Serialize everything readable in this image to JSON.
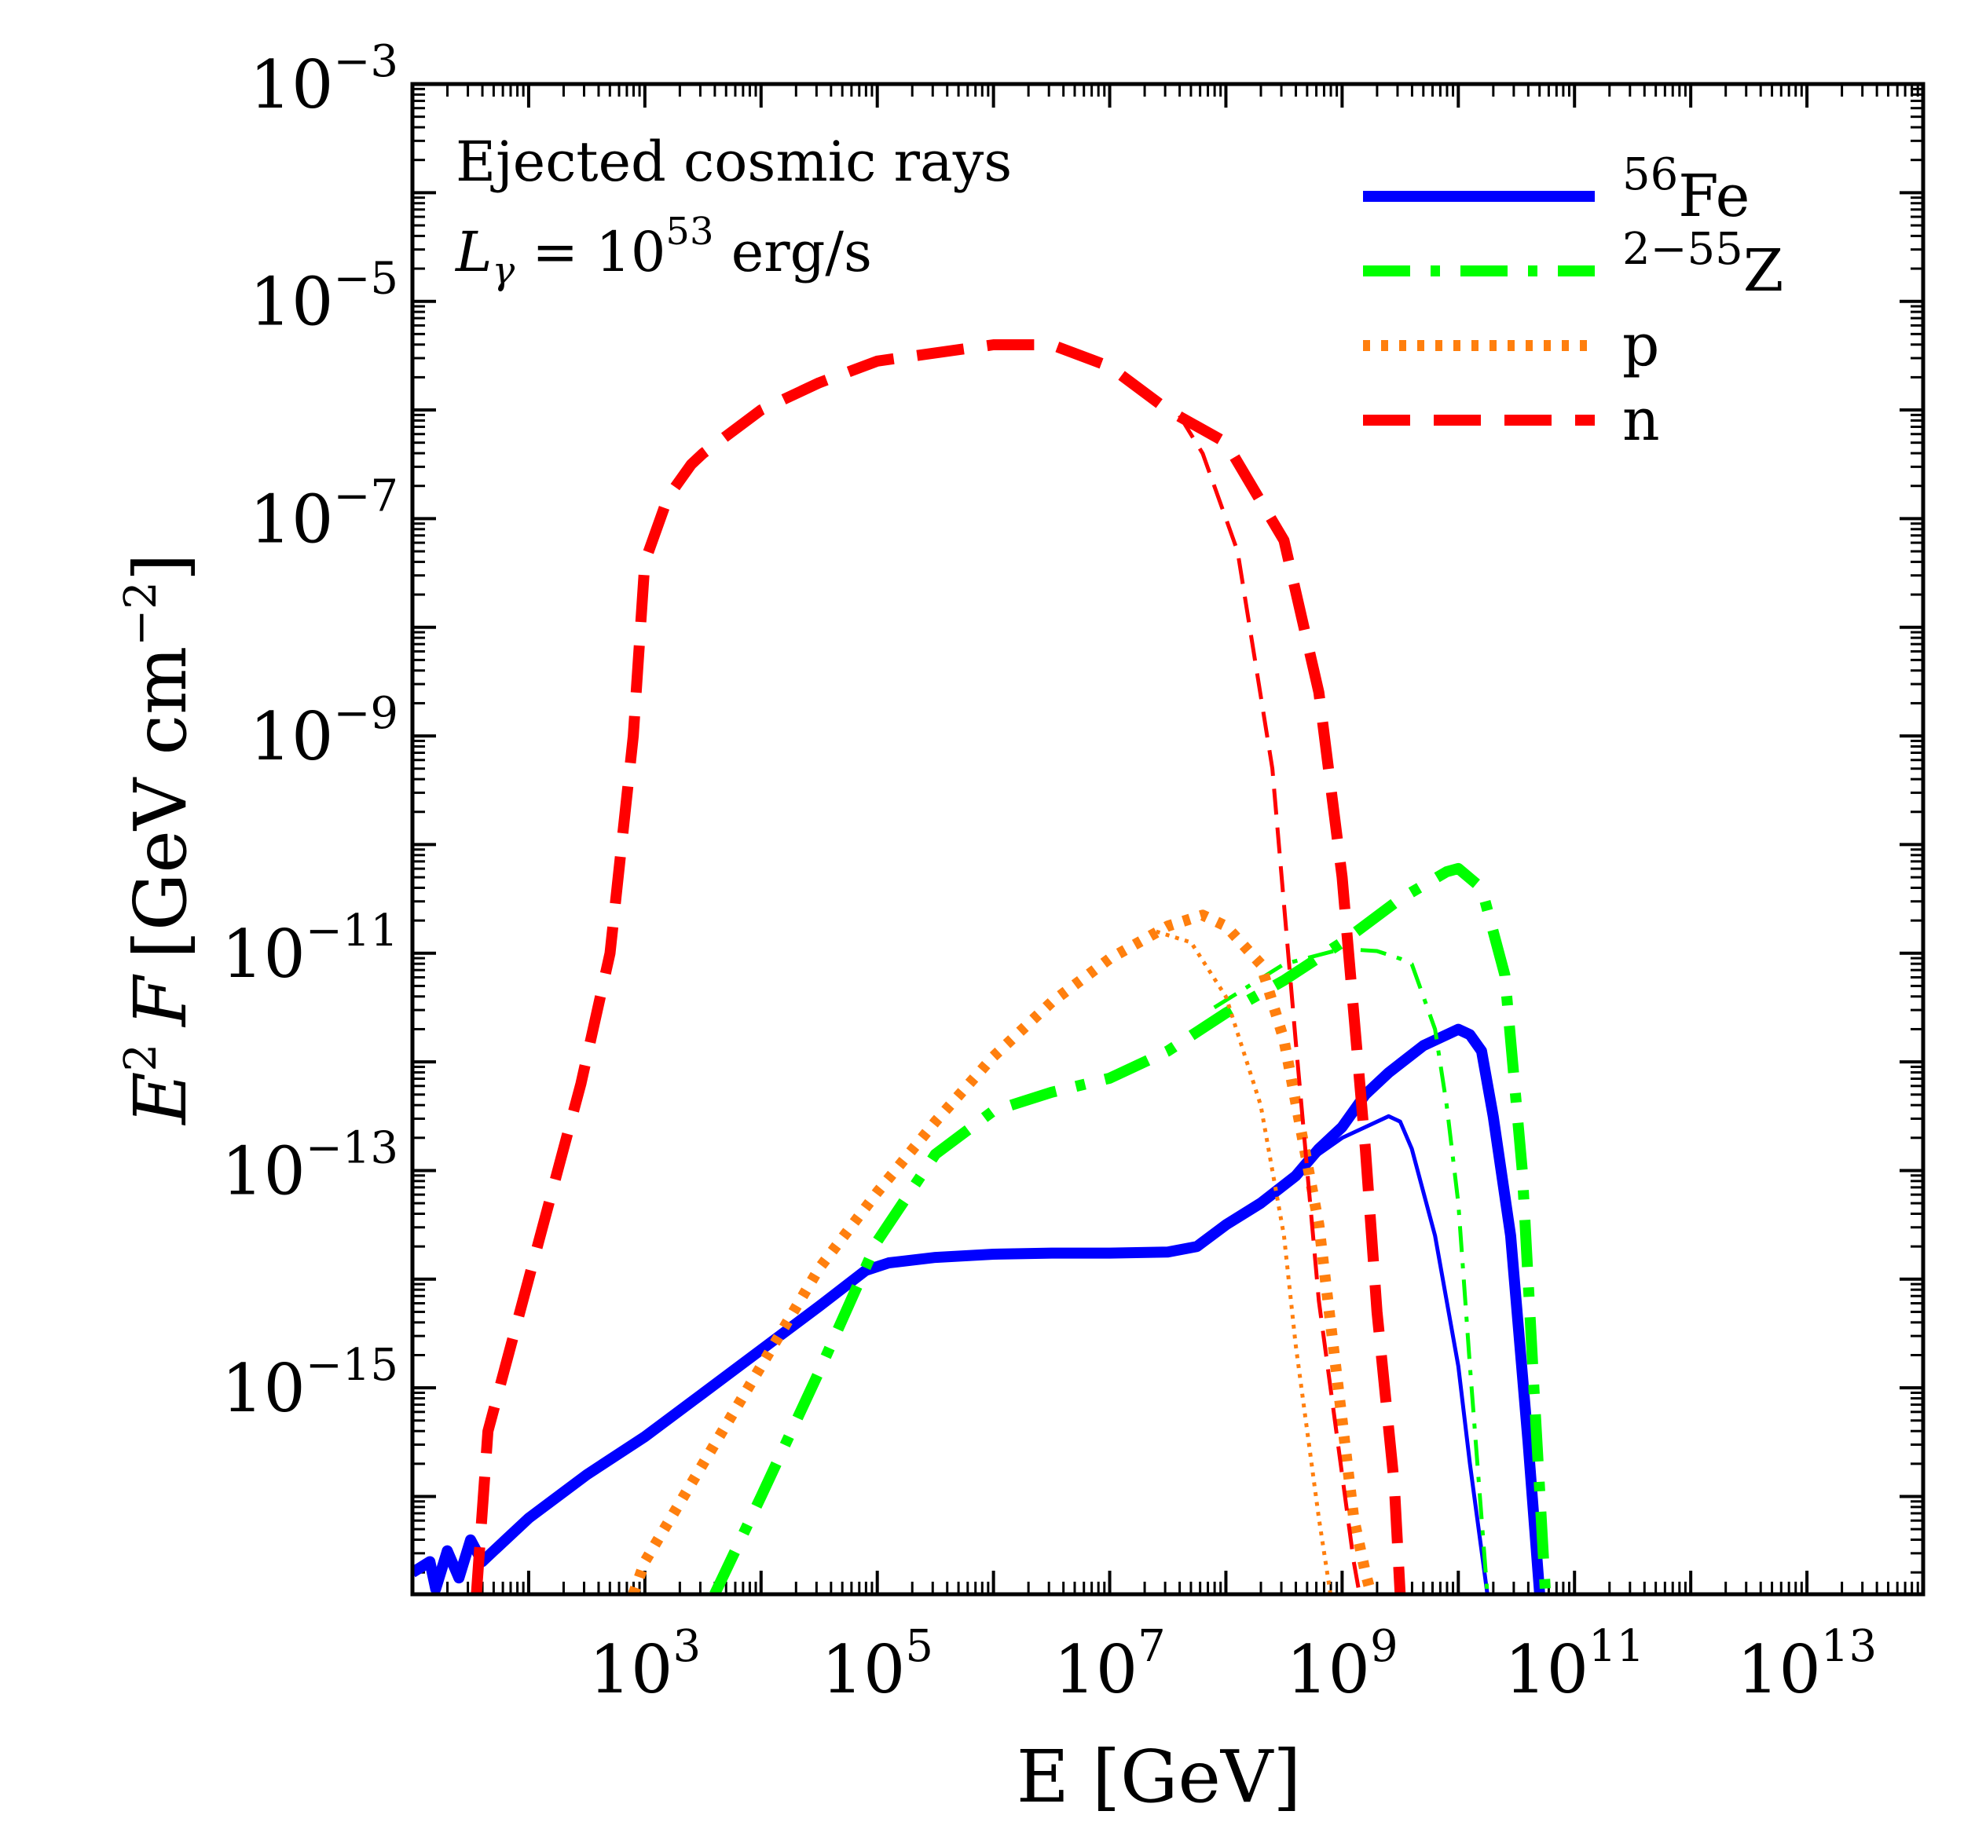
{
  "chart_data": {
    "type": "line",
    "title": "",
    "xlabel": "E [GeV]",
    "ylabel": {
      "prefix": "E",
      "prefix_sup": "2",
      "var": "F",
      "units": "[GeV cm",
      "units_sup": "−2",
      "units_close": "]"
    },
    "x_scale": "log",
    "y_scale": "log",
    "xlim_log10": [
      1.0,
      14.0
    ],
    "ylim_log10": [
      -16.9,
      -3.0
    ],
    "x_ticks": [
      {
        "base": "10",
        "exp": "3",
        "log": 3
      },
      {
        "base": "10",
        "exp": "5",
        "log": 5
      },
      {
        "base": "10",
        "exp": "7",
        "log": 7
      },
      {
        "base": "10",
        "exp": "9",
        "log": 9
      },
      {
        "base": "10",
        "exp": "11",
        "log": 11
      },
      {
        "base": "10",
        "exp": "13",
        "log": 13
      }
    ],
    "y_ticks": [
      {
        "base": "10",
        "exp": "−3",
        "log": -3
      },
      {
        "base": "10",
        "exp": "−5",
        "log": -5
      },
      {
        "base": "10",
        "exp": "−7",
        "log": -7
      },
      {
        "base": "10",
        "exp": "−9",
        "log": -9
      },
      {
        "base": "10",
        "exp": "−11",
        "log": -11
      },
      {
        "base": "10",
        "exp": "−13",
        "log": -13
      },
      {
        "base": "10",
        "exp": "−15",
        "log": -15
      }
    ],
    "annotations": {
      "line1": "Ejected cosmic rays",
      "line2_var": "L",
      "line2_sub": "γ",
      "line2_eq": " = 10",
      "line2_sup": "53",
      "line2_unit": " erg/s"
    },
    "legend": [
      {
        "sup": "56",
        "label": "Fe",
        "color": "#0000ff",
        "dash": "solid"
      },
      {
        "sup": "2−55",
        "label": "Z",
        "color": "#00ff00",
        "dash": "dashdot"
      },
      {
        "sup": "",
        "label": "p",
        "color": "#ff7f0e",
        "dash": "dotted"
      },
      {
        "sup": "",
        "label": "n",
        "color": "#ff0000",
        "dash": "dashed"
      }
    ],
    "series": [
      {
        "name": "Fe (total)",
        "color": "#0000ff",
        "dash": "solid",
        "weight": "thick",
        "x": [
          1.0,
          1.15,
          1.2,
          1.3,
          1.4,
          1.5,
          1.6,
          1.7,
          2.0,
          2.5,
          3.0,
          3.5,
          4.0,
          4.5,
          4.9,
          5.1,
          5.5,
          6.0,
          6.5,
          7.0,
          7.5,
          7.75,
          8.0,
          8.3,
          8.6,
          8.8,
          9.0,
          9.2,
          9.4,
          9.7,
          10.0,
          10.1,
          10.2,
          10.3,
          10.45,
          10.6,
          10.7
        ],
        "y": [
          -16.7,
          -16.6,
          -16.85,
          -16.5,
          -16.75,
          -16.4,
          -16.6,
          -16.5,
          -16.2,
          -15.8,
          -15.45,
          -15.05,
          -14.65,
          -14.25,
          -13.92,
          -13.85,
          -13.8,
          -13.77,
          -13.76,
          -13.76,
          -13.75,
          -13.7,
          -13.5,
          -13.3,
          -13.05,
          -12.8,
          -12.6,
          -12.3,
          -12.1,
          -11.85,
          -11.7,
          -11.75,
          -11.9,
          -12.5,
          -13.6,
          -15.5,
          -16.9
        ]
      },
      {
        "name": "Fe (thin)",
        "color": "#0000ff",
        "dash": "solid",
        "weight": "thin",
        "x": [
          8.6,
          8.8,
          9.0,
          9.2,
          9.4,
          9.5,
          9.6,
          9.8,
          10.0,
          10.1,
          10.25
        ],
        "y": [
          -13.05,
          -12.85,
          -12.7,
          -12.6,
          -12.5,
          -12.55,
          -12.8,
          -13.6,
          -14.8,
          -15.7,
          -16.9
        ]
      },
      {
        "name": "2-55 Z (total)",
        "color": "#00ff00",
        "dash": "dashdot",
        "weight": "thick",
        "x": [
          3.6,
          4.0,
          4.5,
          5.0,
          5.5,
          6.0,
          6.5,
          7.0,
          7.5,
          8.0,
          8.5,
          9.0,
          9.5,
          9.9,
          10.0,
          10.2,
          10.4,
          10.55,
          10.65,
          10.75
        ],
        "y": [
          -16.9,
          -16.0,
          -14.85,
          -13.65,
          -12.85,
          -12.45,
          -12.28,
          -12.15,
          -11.9,
          -11.55,
          -11.25,
          -10.9,
          -10.5,
          -10.25,
          -10.22,
          -10.4,
          -11.2,
          -13.0,
          -15.0,
          -16.9
        ]
      },
      {
        "name": "2-55 Z (thin)",
        "color": "#00ff00",
        "dash": "dashdot",
        "weight": "thin",
        "x": [
          7.9,
          8.5,
          9.0,
          9.3,
          9.5,
          9.6,
          9.8,
          9.9,
          10.0,
          10.1,
          10.25
        ],
        "y": [
          -11.5,
          -11.1,
          -10.96,
          -10.98,
          -11.05,
          -11.1,
          -11.7,
          -12.4,
          -13.3,
          -14.8,
          -16.9
        ]
      },
      {
        "name": "p (total)",
        "color": "#ff7f0e",
        "dash": "dotted",
        "weight": "thick",
        "x": [
          2.9,
          3.0,
          3.5,
          4.0,
          4.5,
          5.0,
          5.5,
          6.0,
          6.5,
          7.0,
          7.5,
          7.8,
          8.0,
          8.3,
          8.5,
          8.8,
          9.0,
          9.1,
          9.2,
          9.25
        ],
        "y": [
          -16.9,
          -16.6,
          -15.7,
          -14.8,
          -13.9,
          -13.2,
          -12.55,
          -11.95,
          -11.45,
          -11.05,
          -10.75,
          -10.65,
          -10.75,
          -11.1,
          -11.8,
          -13.5,
          -15.3,
          -16.2,
          -16.7,
          -16.9
        ]
      },
      {
        "name": "p (thin)",
        "color": "#ff7f0e",
        "dash": "dotted",
        "weight": "thin",
        "x": [
          7.4,
          7.7,
          8.0,
          8.3,
          8.5,
          8.6,
          8.7,
          8.8,
          8.9
        ],
        "y": [
          -10.8,
          -10.9,
          -11.4,
          -12.4,
          -13.6,
          -14.6,
          -15.4,
          -16.2,
          -16.9
        ]
      },
      {
        "name": "n (total)",
        "color": "#ff0000",
        "dash": "dashed",
        "weight": "thick",
        "x": [
          1.55,
          1.65,
          2.0,
          2.45,
          2.7,
          2.9,
          3.0,
          3.2,
          3.4,
          3.5,
          4.0,
          4.5,
          5.0,
          6.0,
          6.5,
          7.0,
          7.5,
          8.0,
          8.5,
          8.8,
          9.0,
          9.2,
          9.3,
          9.45,
          9.5
        ],
        "y": [
          -16.9,
          -15.4,
          -14.0,
          -12.2,
          -11.0,
          -9.0,
          -7.4,
          -6.8,
          -6.5,
          -6.4,
          -6.0,
          -5.75,
          -5.55,
          -5.4,
          -5.4,
          -5.6,
          -6.0,
          -6.3,
          -7.2,
          -8.6,
          -10.3,
          -12.8,
          -14.3,
          -15.9,
          -16.9
        ]
      },
      {
        "name": "n (thin)",
        "color": "#ff0000",
        "dash": "dashed",
        "weight": "thin",
        "x": [
          7.6,
          7.8,
          8.1,
          8.4,
          8.6,
          8.8,
          9.0,
          9.1,
          9.15
        ],
        "y": [
          -6.05,
          -6.4,
          -7.3,
          -9.3,
          -11.8,
          -14.2,
          -15.8,
          -16.6,
          -16.9
        ]
      }
    ]
  }
}
